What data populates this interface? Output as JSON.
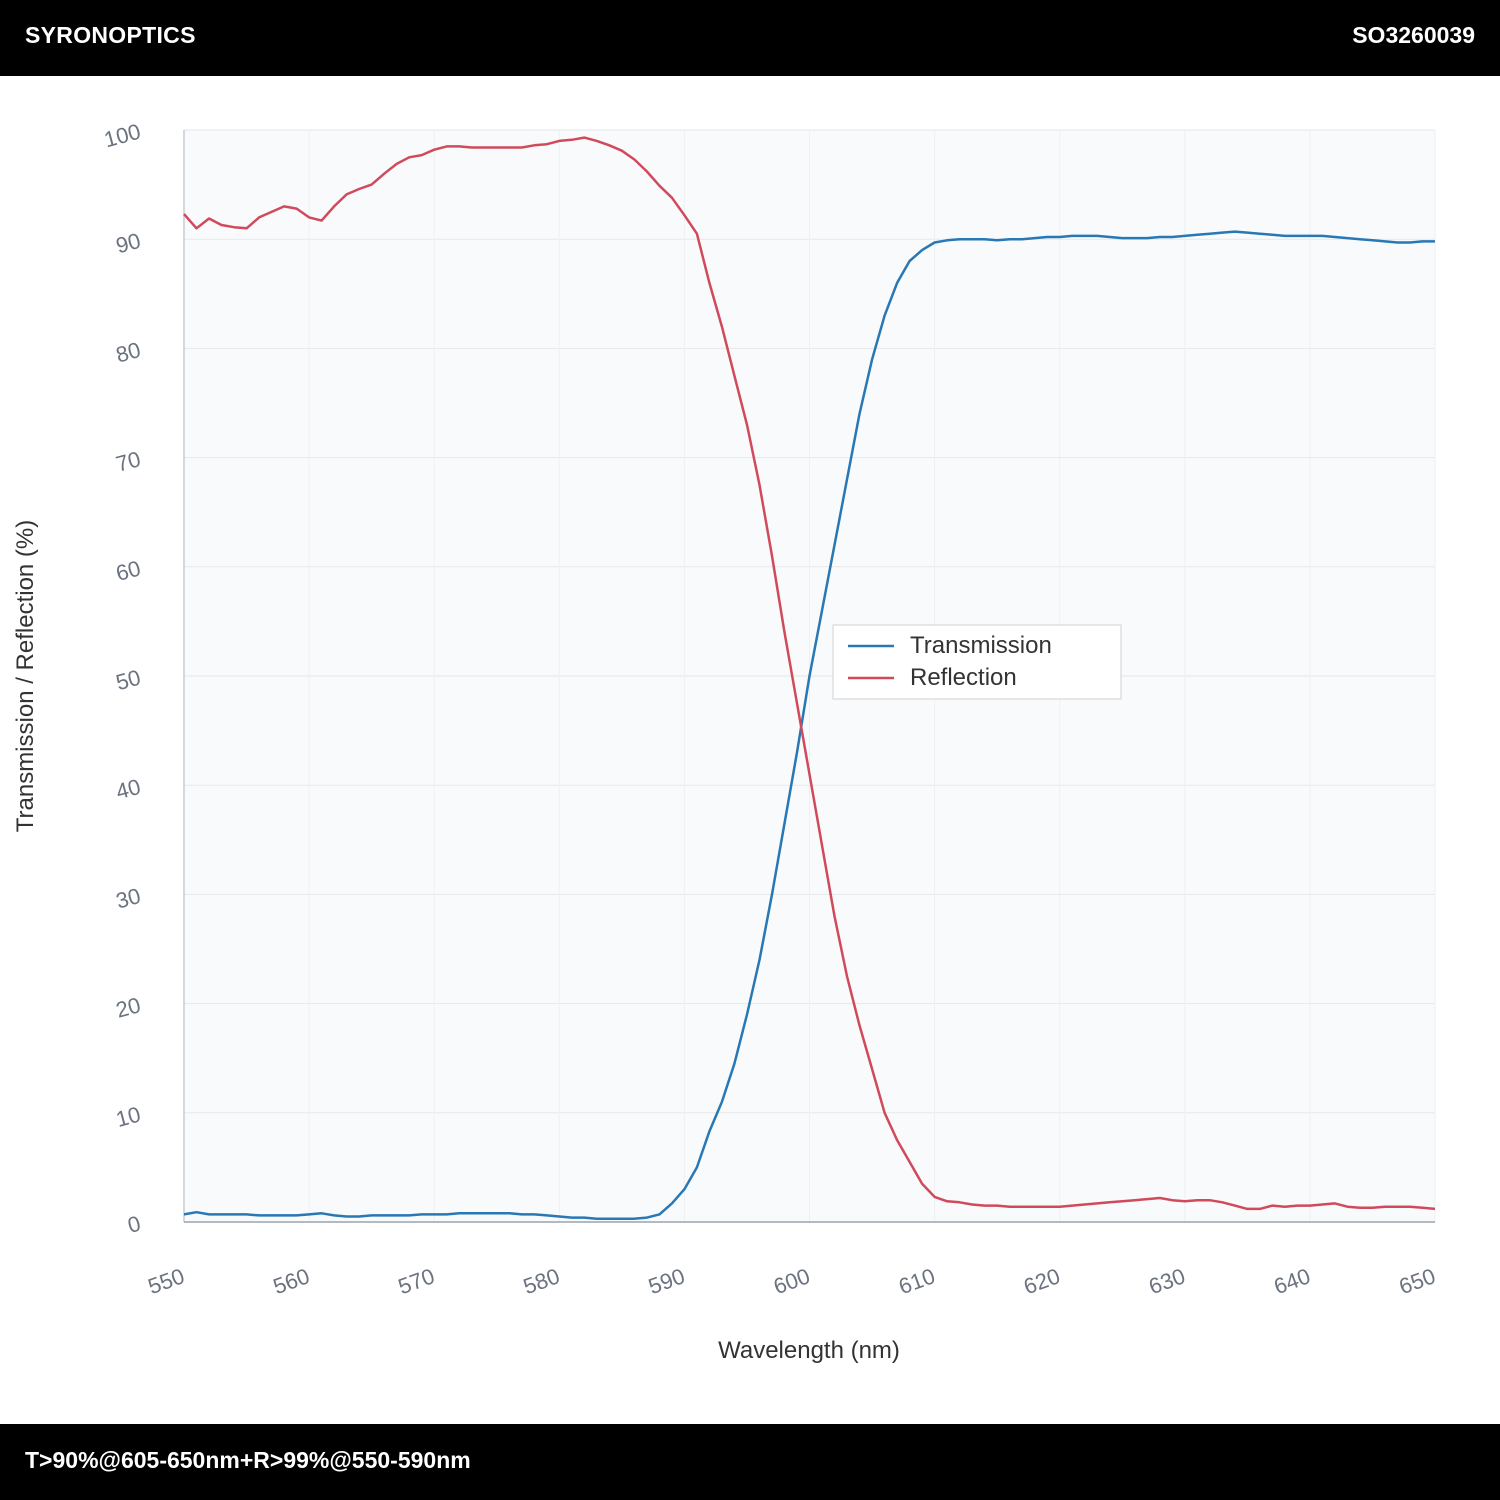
{
  "header": {
    "brand": "SYRONOPTICS",
    "code": "SO3260039"
  },
  "footer": {
    "spec": "T>90%@605-650nm+R>99%@550-590nm"
  },
  "colors": {
    "transmission": "#2878b5",
    "reflection": "#d04a5c",
    "plot_bg": "#f9fafb",
    "grid": "#e5e7eb"
  },
  "chart_data": {
    "type": "line",
    "xlabel": "Wavelength (nm)",
    "ylabel": "Transmission / Reflection (%)",
    "xlim": [
      550,
      650
    ],
    "ylim": [
      0,
      100
    ],
    "xticks": [
      "550",
      "560",
      "570",
      "580",
      "590",
      "600",
      "610",
      "620",
      "630",
      "640",
      "650"
    ],
    "yticks": [
      "0",
      "10",
      "20",
      "30",
      "40",
      "50",
      "60",
      "70",
      "80",
      "90",
      "100"
    ],
    "grid": true,
    "legend_position": "center",
    "x": [
      550,
      551,
      552,
      553,
      554,
      555,
      556,
      557,
      558,
      559,
      560,
      561,
      562,
      563,
      564,
      565,
      566,
      567,
      568,
      569,
      570,
      571,
      572,
      573,
      574,
      575,
      576,
      577,
      578,
      579,
      580,
      581,
      582,
      583,
      584,
      585,
      586,
      587,
      588,
      589,
      590,
      591,
      592,
      593,
      594,
      595,
      596,
      597,
      598,
      599,
      600,
      601,
      602,
      603,
      604,
      605,
      606,
      607,
      608,
      609,
      610,
      611,
      612,
      613,
      614,
      615,
      616,
      617,
      618,
      619,
      620,
      621,
      622,
      623,
      624,
      625,
      626,
      627,
      628,
      629,
      630,
      631,
      632,
      633,
      634,
      635,
      636,
      637,
      638,
      639,
      640,
      641,
      642,
      643,
      644,
      645,
      646,
      647,
      648,
      649,
      650
    ],
    "series": [
      {
        "name": "Transmission",
        "values": [
          0.7,
          0.9,
          0.7,
          0.7,
          0.7,
          0.7,
          0.6,
          0.6,
          0.6,
          0.6,
          0.7,
          0.8,
          0.6,
          0.5,
          0.5,
          0.6,
          0.6,
          0.6,
          0.6,
          0.7,
          0.7,
          0.7,
          0.8,
          0.8,
          0.8,
          0.8,
          0.8,
          0.7,
          0.7,
          0.6,
          0.5,
          0.4,
          0.4,
          0.3,
          0.3,
          0.3,
          0.3,
          0.4,
          0.7,
          1.7,
          3,
          5,
          8.3,
          11,
          14.5,
          19,
          24,
          30,
          36.5,
          43,
          50,
          56,
          62,
          68,
          74,
          79,
          83,
          86,
          88,
          89,
          89.7,
          89.9,
          90,
          90,
          90,
          89.9,
          90,
          90,
          90.1,
          90.2,
          90.2,
          90.3,
          90.3,
          90.3,
          90.2,
          90.1,
          90.1,
          90.1,
          90.2,
          90.2,
          90.3,
          90.4,
          90.5,
          90.6,
          90.7,
          90.6,
          90.5,
          90.4,
          90.3,
          90.3,
          90.3,
          90.3,
          90.2,
          90.1,
          90,
          89.9,
          89.8,
          89.7,
          89.7,
          89.8,
          89.8
        ]
      },
      {
        "name": "Reflection",
        "values": [
          92.3,
          91,
          91.9,
          91.3,
          91.1,
          91,
          92,
          92.5,
          93,
          92.8,
          92,
          91.7,
          93,
          94.1,
          94.6,
          95,
          96,
          96.9,
          97.5,
          97.7,
          98.2,
          98.5,
          98.5,
          98.4,
          98.4,
          98.4,
          98.4,
          98.4,
          98.6,
          98.7,
          99,
          99.1,
          99.3,
          99,
          98.6,
          98.1,
          97.3,
          96.2,
          94.9,
          93.8,
          92.2,
          90.5,
          86,
          82,
          77.5,
          73,
          67.5,
          61,
          54,
          47.5,
          41,
          34.5,
          28,
          22.5,
          18,
          14,
          10,
          7.5,
          5.5,
          3.5,
          2.3,
          1.9,
          1.8,
          1.6,
          1.5,
          1.5,
          1.4,
          1.4,
          1.4,
          1.4,
          1.4,
          1.5,
          1.6,
          1.7,
          1.8,
          1.9,
          2,
          2.1,
          2.2,
          2,
          1.9,
          2,
          2,
          1.8,
          1.5,
          1.2,
          1.2,
          1.5,
          1.4,
          1.5,
          1.5,
          1.6,
          1.7,
          1.4,
          1.3,
          1.3,
          1.4,
          1.4,
          1.4,
          1.3,
          1.2
        ]
      }
    ]
  }
}
